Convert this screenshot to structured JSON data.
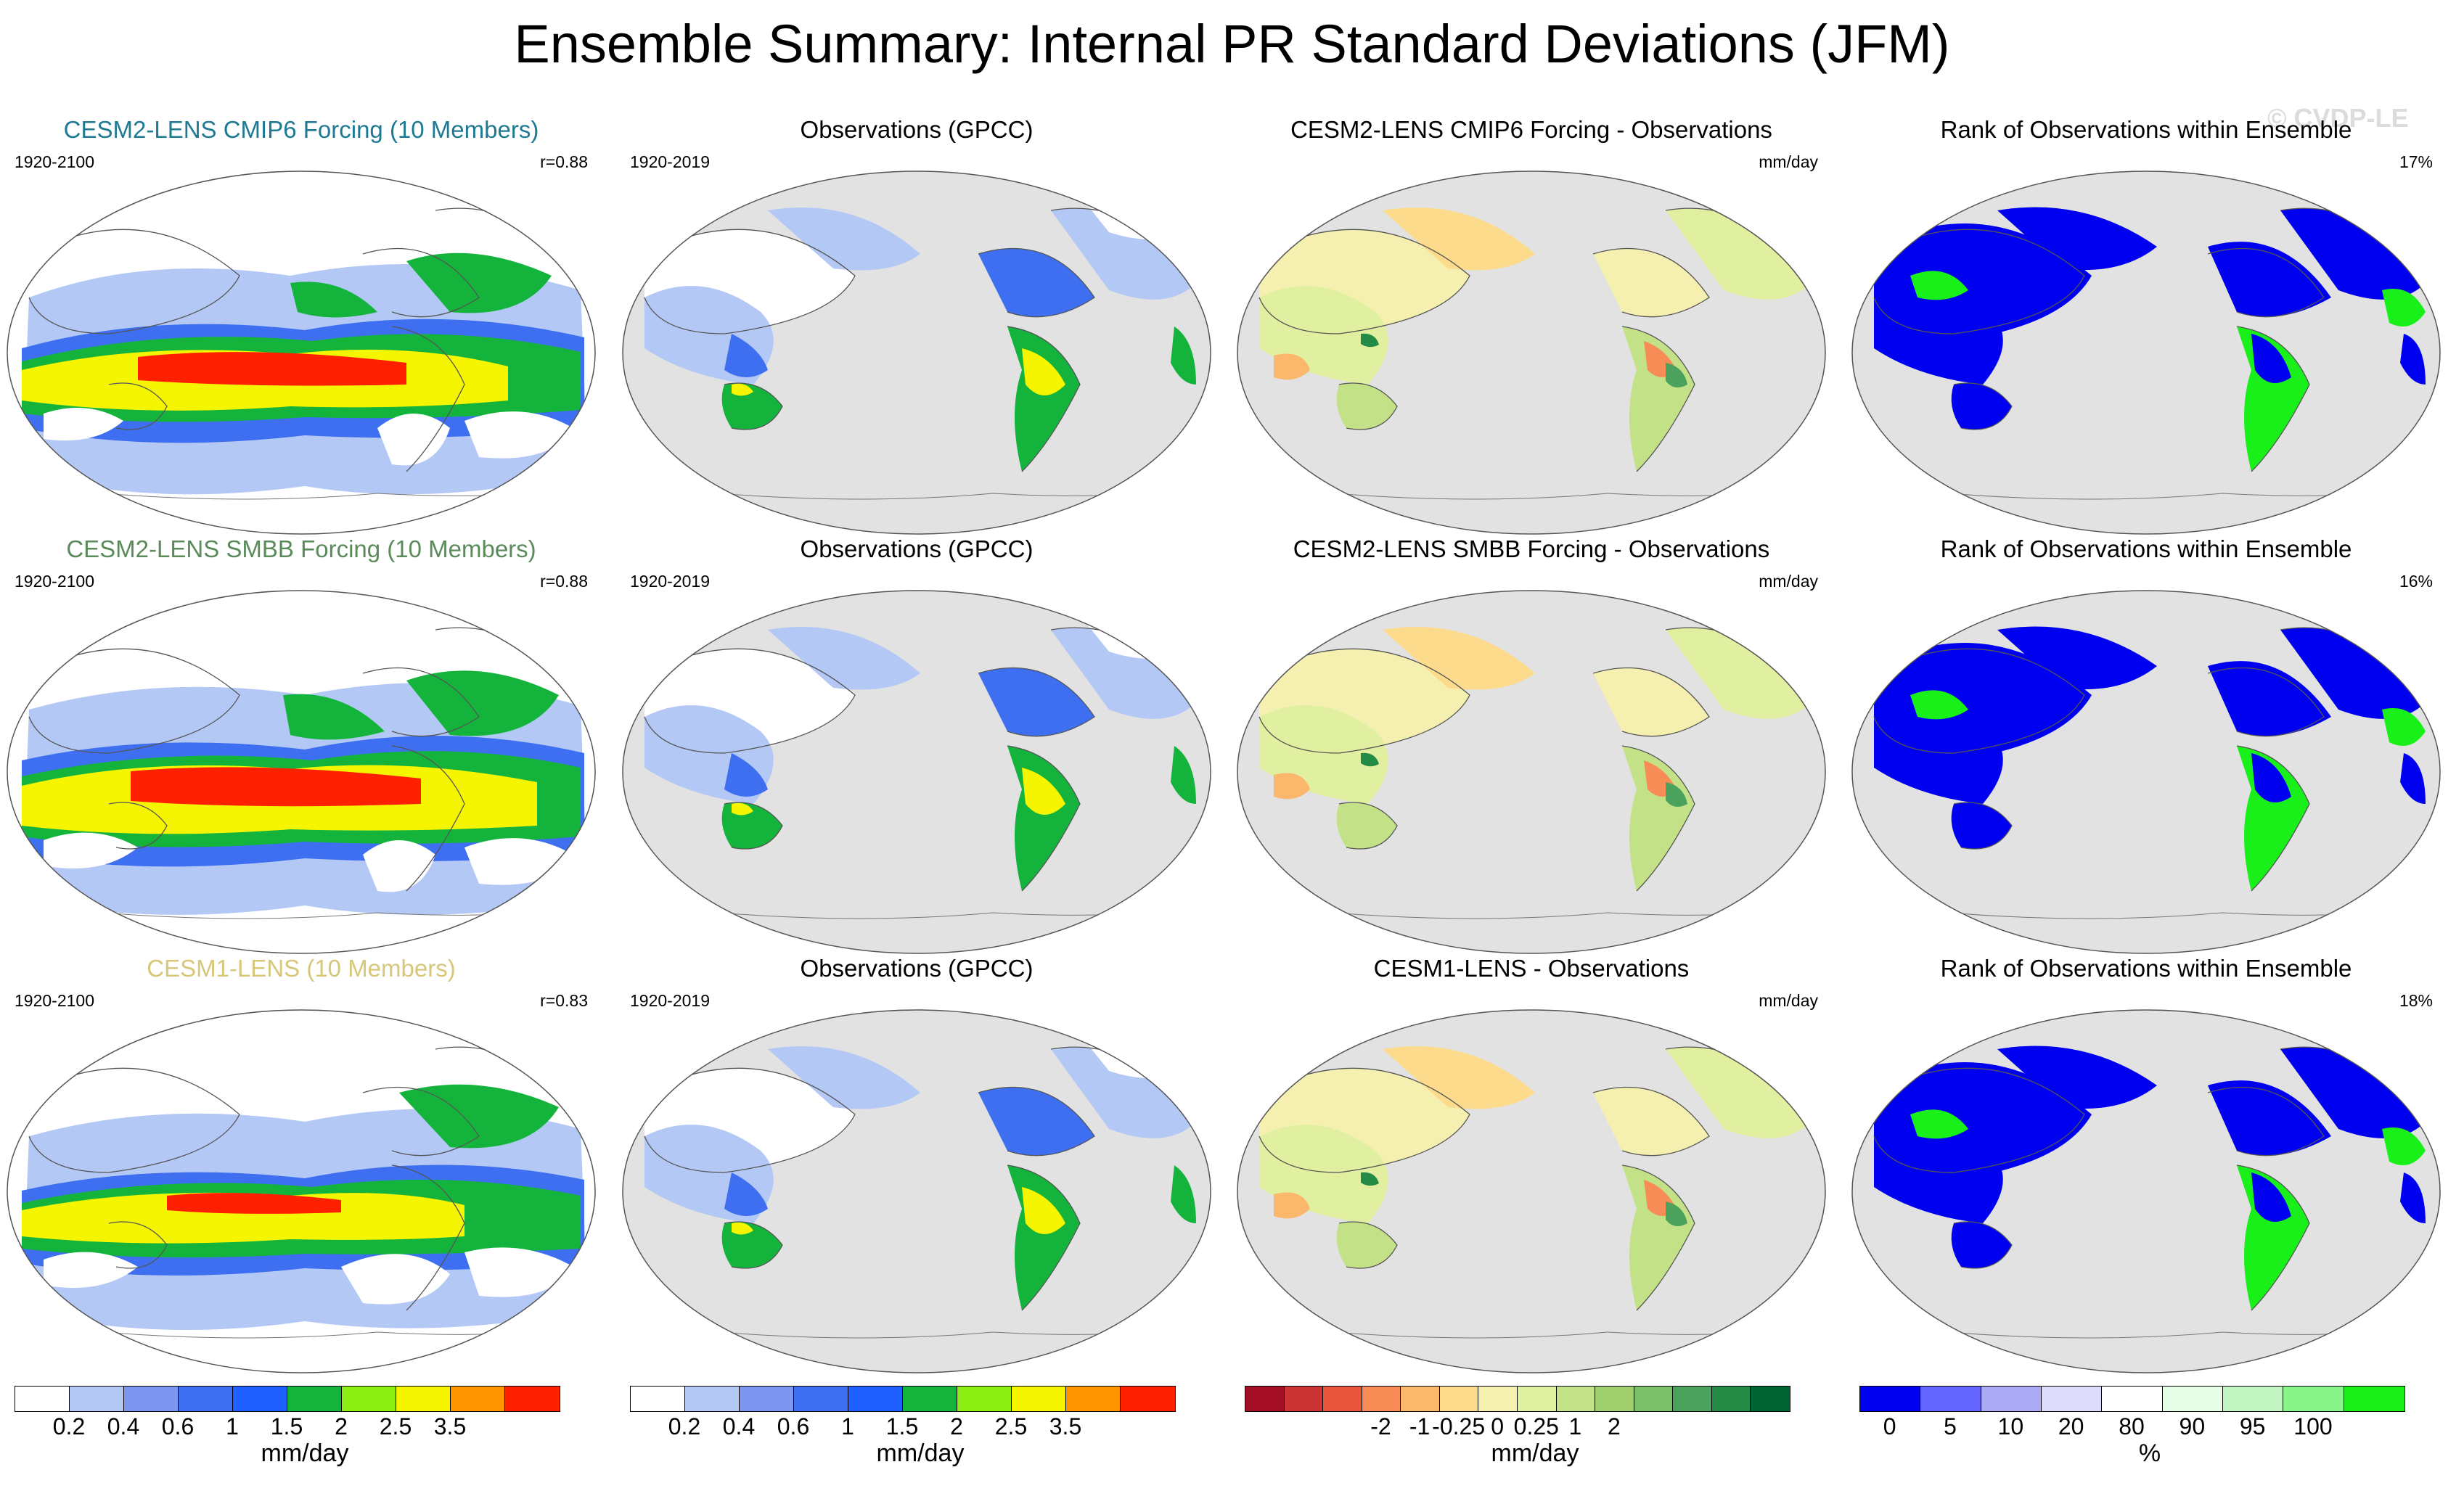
{
  "page_title": "Ensemble Summary: Internal PR Standard Deviations (JFM)",
  "watermark": "© CVDP-LE",
  "rows": [
    {
      "model": {
        "title": "CESM2-LENS CMIP6 Forcing (10 Members)",
        "title_color": "#1e7a93",
        "years": "1920-2100",
        "stat": "r=0.88"
      },
      "obs": {
        "title": "Observations (GPCC)",
        "years": "1920-2019"
      },
      "diff": {
        "title": "CESM2-LENS CMIP6 Forcing - Observations",
        "units": "mm/day"
      },
      "rank": {
        "title": "Rank of Observations within Ensemble",
        "stat": "17%"
      }
    },
    {
      "model": {
        "title": "CESM2-LENS SMBB Forcing (10 Members)",
        "title_color": "#5b8a5b",
        "years": "1920-2100",
        "stat": "r=0.88"
      },
      "obs": {
        "title": "Observations (GPCC)",
        "years": "1920-2019"
      },
      "diff": {
        "title": "CESM2-LENS SMBB Forcing - Observations",
        "units": "mm/day"
      },
      "rank": {
        "title": "Rank of Observations within Ensemble",
        "stat": "16%"
      }
    },
    {
      "model": {
        "title": "CESM1-LENS (10 Members)",
        "title_color": "#d6c77a",
        "years": "1920-2100",
        "stat": "r=0.83"
      },
      "obs": {
        "title": "Observations (GPCC)",
        "years": "1920-2019"
      },
      "diff": {
        "title": "CESM1-LENS - Observations",
        "units": "mm/day"
      },
      "rank": {
        "title": "Rank of Observations within Ensemble",
        "stat": "18%"
      }
    }
  ],
  "colorbars": {
    "precip": {
      "colors": [
        "#ffffff",
        "#b4c8f5",
        "#7f96f0",
        "#3d6ff0",
        "#1e5fff",
        "#14b43c",
        "#8cf014",
        "#f5f500",
        "#ff9600",
        "#ff2000"
      ],
      "tick_labels": [
        "0.2",
        "0.4",
        "0.6",
        "1",
        "1.5",
        "2",
        "2.5",
        "3.5"
      ],
      "units": "mm/day"
    },
    "precip_obs": {
      "colors": [
        "#ffffff",
        "#b4c8f5",
        "#7f96f0",
        "#3d6ff0",
        "#1e5fff",
        "#14b43c",
        "#8cf014",
        "#f5f500",
        "#ff9600",
        "#ff2000"
      ],
      "tick_labels": [
        "0.2",
        "0.4",
        "0.6",
        "1",
        "1.5",
        "2",
        "2.5",
        "3.5"
      ],
      "units": "mm/day"
    },
    "diff": {
      "colors": [
        "#a50f26",
        "#cc3333",
        "#e8553a",
        "#f78c56",
        "#fbb86c",
        "#fcdc8c",
        "#f5f0b0",
        "#e1f0a0",
        "#c3e287",
        "#a0d06e",
        "#7bbf6a",
        "#4aa25c",
        "#238b45",
        "#006334"
      ],
      "tick_labels": [
        "-2",
        "-1",
        "-0.25",
        "0",
        "0.25",
        "1",
        "2"
      ],
      "units": "mm/day"
    },
    "rank": {
      "colors": [
        "#0000f0",
        "#6464ff",
        "#aaaaf5",
        "#dcdcfa",
        "#ffffff",
        "#e6ffe6",
        "#c3f5c3",
        "#87f587",
        "#19f019"
      ],
      "tick_labels": [
        "0",
        "5",
        "10",
        "20",
        "80",
        "90",
        "95",
        "100"
      ],
      "units": "%"
    }
  }
}
